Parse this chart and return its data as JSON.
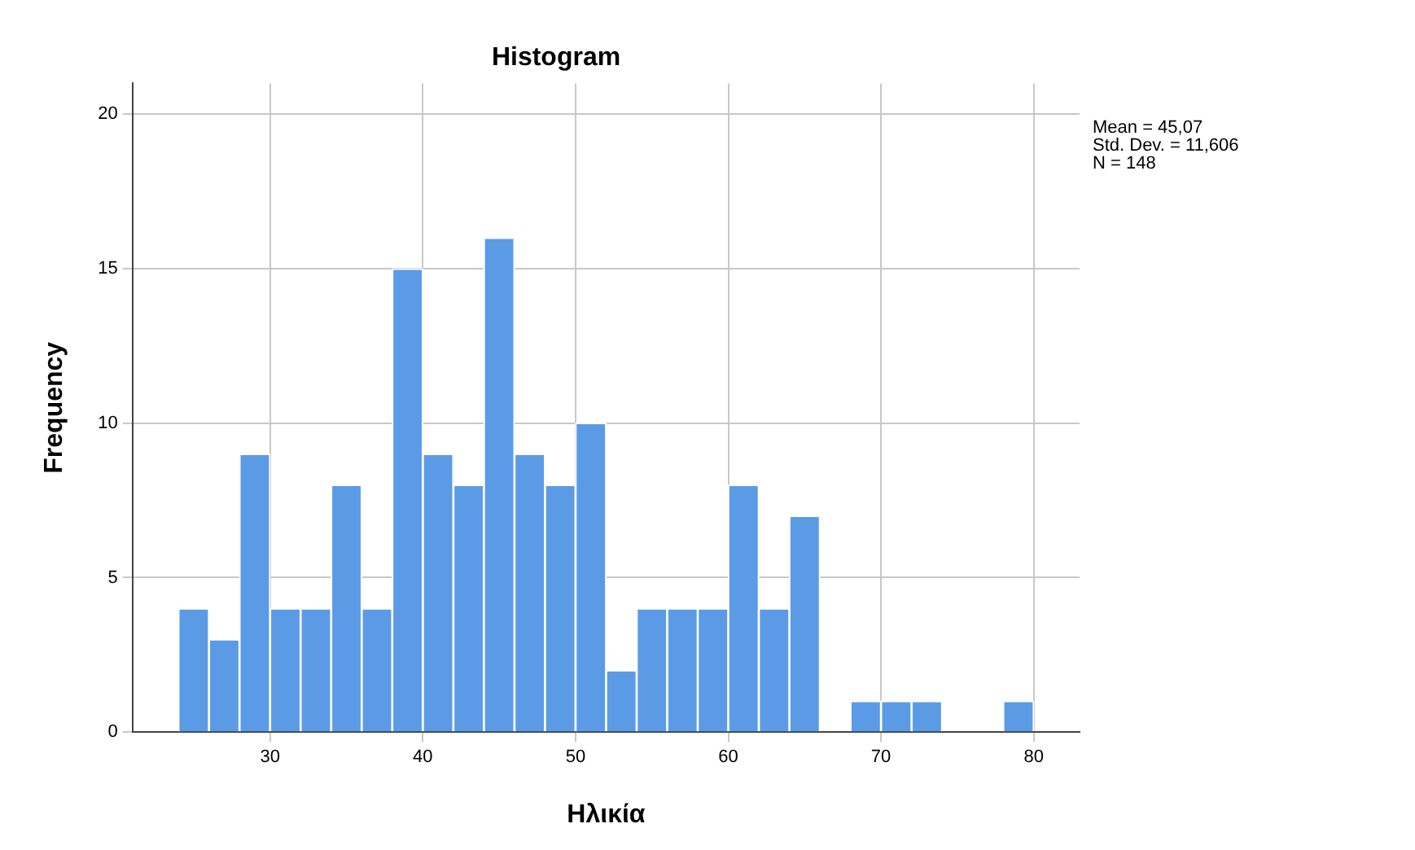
{
  "chart_data": {
    "type": "histogram",
    "title": "Histogram",
    "xlabel": "Ηλικία",
    "ylabel": "Frequency",
    "bins": [
      24,
      26,
      28,
      30,
      32,
      34,
      36,
      38,
      40,
      42,
      44,
      46,
      48,
      50,
      52,
      54,
      56,
      58,
      60,
      62,
      64,
      66,
      68,
      70,
      72,
      74,
      76,
      78,
      80
    ],
    "values": [
      4,
      3,
      9,
      4,
      4,
      8,
      4,
      15,
      9,
      8,
      16,
      9,
      8,
      10,
      2,
      4,
      4,
      4,
      8,
      4,
      7,
      0,
      1,
      1,
      1,
      0,
      0,
      1
    ],
    "color": "#5b9be6",
    "xlim": [
      21,
      83
    ],
    "xticks": [
      30,
      40,
      50,
      60,
      70,
      80
    ],
    "ylim": [
      0,
      21
    ],
    "yticks": [
      0,
      5,
      10,
      15,
      20
    ],
    "grid": true,
    "legend": false,
    "annotations": [
      "Mean = 45,07",
      "Std. Dev. = 11,606",
      "N = 148"
    ]
  }
}
